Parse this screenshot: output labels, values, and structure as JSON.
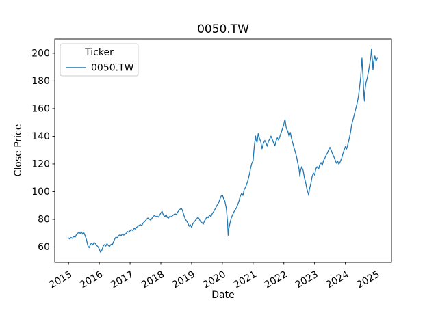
{
  "figure": {
    "title": "0050.TW",
    "xlabel": "Date",
    "ylabel": "Close Price"
  },
  "chart_data": {
    "type": "line",
    "title": "0050.TW",
    "xlabel": "Date",
    "ylabel": "Close Price",
    "grid": false,
    "xlim": [
      2014.55,
      2025.5
    ],
    "ylim": [
      48.9,
      210.3
    ],
    "xticks": [
      2015,
      2016,
      2017,
      2018,
      2019,
      2020,
      2021,
      2022,
      2023,
      2024,
      2025
    ],
    "yticks": [
      60,
      80,
      100,
      120,
      140,
      160,
      180,
      200
    ],
    "legend": {
      "title": "Ticker",
      "position": "upper left"
    },
    "series": [
      {
        "name": "0050.TW",
        "color": "#1f77b4",
        "points": [
          [
            2015.0,
            66.5
          ],
          [
            2015.04,
            65.8
          ],
          [
            2015.08,
            66.9
          ],
          [
            2015.12,
            66.2
          ],
          [
            2015.17,
            67.8
          ],
          [
            2015.21,
            67.0
          ],
          [
            2015.25,
            68.8
          ],
          [
            2015.29,
            69.6
          ],
          [
            2015.33,
            70.8
          ],
          [
            2015.38,
            69.9
          ],
          [
            2015.42,
            70.9
          ],
          [
            2015.46,
            69.3
          ],
          [
            2015.5,
            70.2
          ],
          [
            2015.54,
            68.0
          ],
          [
            2015.58,
            65.5
          ],
          [
            2015.63,
            60.8
          ],
          [
            2015.67,
            59.5
          ],
          [
            2015.71,
            61.9
          ],
          [
            2015.75,
            62.8
          ],
          [
            2015.79,
            61.5
          ],
          [
            2015.83,
            63.4
          ],
          [
            2015.88,
            62.2
          ],
          [
            2015.92,
            61.0
          ],
          [
            2015.96,
            60.1
          ],
          [
            2016.0,
            58.3
          ],
          [
            2016.04,
            56.2
          ],
          [
            2016.08,
            57.5
          ],
          [
            2016.13,
            60.9
          ],
          [
            2016.17,
            61.8
          ],
          [
            2016.21,
            60.7
          ],
          [
            2016.25,
            62.4
          ],
          [
            2016.29,
            61.2
          ],
          [
            2016.33,
            60.4
          ],
          [
            2016.38,
            62.0
          ],
          [
            2016.42,
            61.5
          ],
          [
            2016.46,
            63.8
          ],
          [
            2016.5,
            65.7
          ],
          [
            2016.54,
            67.2
          ],
          [
            2016.58,
            66.5
          ],
          [
            2016.63,
            68.3
          ],
          [
            2016.67,
            68.9
          ],
          [
            2016.71,
            68.2
          ],
          [
            2016.75,
            69.4
          ],
          [
            2016.79,
            68.6
          ],
          [
            2016.83,
            69.0
          ],
          [
            2016.88,
            70.1
          ],
          [
            2016.92,
            71.2
          ],
          [
            2016.96,
            70.6
          ],
          [
            2017.0,
            71.8
          ],
          [
            2017.04,
            72.6
          ],
          [
            2017.08,
            72.0
          ],
          [
            2017.13,
            73.4
          ],
          [
            2017.17,
            73.0
          ],
          [
            2017.21,
            74.2
          ],
          [
            2017.25,
            74.8
          ],
          [
            2017.29,
            75.6
          ],
          [
            2017.33,
            76.2
          ],
          [
            2017.38,
            75.5
          ],
          [
            2017.42,
            77.3
          ],
          [
            2017.46,
            78.1
          ],
          [
            2017.5,
            79.0
          ],
          [
            2017.54,
            80.2
          ],
          [
            2017.58,
            81.0
          ],
          [
            2017.63,
            80.1
          ],
          [
            2017.67,
            79.4
          ],
          [
            2017.71,
            80.8
          ],
          [
            2017.75,
            82.0
          ],
          [
            2017.79,
            82.8
          ],
          [
            2017.83,
            81.9
          ],
          [
            2017.88,
            82.4
          ],
          [
            2017.92,
            81.6
          ],
          [
            2017.96,
            83.0
          ],
          [
            2018.0,
            84.6
          ],
          [
            2018.04,
            85.8
          ],
          [
            2018.08,
            83.2
          ],
          [
            2018.13,
            82.0
          ],
          [
            2018.17,
            83.5
          ],
          [
            2018.21,
            81.4
          ],
          [
            2018.25,
            80.9
          ],
          [
            2018.29,
            82.2
          ],
          [
            2018.33,
            81.8
          ],
          [
            2018.38,
            82.6
          ],
          [
            2018.42,
            83.4
          ],
          [
            2018.46,
            84.1
          ],
          [
            2018.5,
            83.3
          ],
          [
            2018.54,
            85.0
          ],
          [
            2018.58,
            86.2
          ],
          [
            2018.63,
            87.4
          ],
          [
            2018.67,
            88.0
          ],
          [
            2018.71,
            85.9
          ],
          [
            2018.75,
            83.0
          ],
          [
            2018.79,
            80.4
          ],
          [
            2018.83,
            79.0
          ],
          [
            2018.88,
            77.2
          ],
          [
            2018.92,
            75.0
          ],
          [
            2018.96,
            76.1
          ],
          [
            2019.0,
            74.2
          ],
          [
            2019.04,
            76.8
          ],
          [
            2019.08,
            78.0
          ],
          [
            2019.13,
            79.4
          ],
          [
            2019.17,
            80.6
          ],
          [
            2019.21,
            81.5
          ],
          [
            2019.25,
            80.2
          ],
          [
            2019.29,
            78.3
          ],
          [
            2019.33,
            77.8
          ],
          [
            2019.38,
            76.5
          ],
          [
            2019.42,
            78.9
          ],
          [
            2019.46,
            80.3
          ],
          [
            2019.5,
            82.0
          ],
          [
            2019.54,
            81.2
          ],
          [
            2019.58,
            83.0
          ],
          [
            2019.63,
            82.1
          ],
          [
            2019.67,
            84.0
          ],
          [
            2019.71,
            85.3
          ],
          [
            2019.75,
            86.8
          ],
          [
            2019.79,
            88.5
          ],
          [
            2019.83,
            90.2
          ],
          [
            2019.88,
            92.0
          ],
          [
            2019.92,
            94.5
          ],
          [
            2019.96,
            96.8
          ],
          [
            2020.0,
            97.5
          ],
          [
            2020.04,
            95.0
          ],
          [
            2020.08,
            93.2
          ],
          [
            2020.13,
            88.0
          ],
          [
            2020.17,
            78.0
          ],
          [
            2020.19,
            68.5
          ],
          [
            2020.21,
            73.0
          ],
          [
            2020.25,
            77.5
          ],
          [
            2020.29,
            80.9
          ],
          [
            2020.33,
            83.2
          ],
          [
            2020.38,
            85.5
          ],
          [
            2020.42,
            87.0
          ],
          [
            2020.46,
            88.3
          ],
          [
            2020.5,
            90.6
          ],
          [
            2020.54,
            93.0
          ],
          [
            2020.58,
            96.4
          ],
          [
            2020.63,
            99.0
          ],
          [
            2020.67,
            97.2
          ],
          [
            2020.71,
            101.5
          ],
          [
            2020.75,
            103.0
          ],
          [
            2020.79,
            105.2
          ],
          [
            2020.83,
            108.0
          ],
          [
            2020.88,
            112.5
          ],
          [
            2020.92,
            117.0
          ],
          [
            2020.96,
            120.5
          ],
          [
            2021.0,
            122.3
          ],
          [
            2021.02,
            128.0
          ],
          [
            2021.04,
            133.0
          ],
          [
            2021.06,
            136.5
          ],
          [
            2021.08,
            140.2
          ],
          [
            2021.1,
            137.0
          ],
          [
            2021.13,
            135.5
          ],
          [
            2021.15,
            139.0
          ],
          [
            2021.17,
            142.0
          ],
          [
            2021.21,
            138.4
          ],
          [
            2021.25,
            136.0
          ],
          [
            2021.29,
            131.0
          ],
          [
            2021.33,
            134.5
          ],
          [
            2021.38,
            137.0
          ],
          [
            2021.42,
            135.2
          ],
          [
            2021.46,
            132.8
          ],
          [
            2021.5,
            136.4
          ],
          [
            2021.54,
            138.0
          ],
          [
            2021.58,
            140.1
          ],
          [
            2021.63,
            137.5
          ],
          [
            2021.67,
            135.0
          ],
          [
            2021.71,
            133.2
          ],
          [
            2021.75,
            136.8
          ],
          [
            2021.79,
            139.0
          ],
          [
            2021.83,
            137.2
          ],
          [
            2021.88,
            140.5
          ],
          [
            2021.92,
            143.0
          ],
          [
            2021.96,
            145.8
          ],
          [
            2022.0,
            148.5
          ],
          [
            2022.02,
            150.9
          ],
          [
            2022.04,
            152.0
          ],
          [
            2022.08,
            146.0
          ],
          [
            2022.13,
            143.5
          ],
          [
            2022.17,
            140.0
          ],
          [
            2022.21,
            142.8
          ],
          [
            2022.25,
            138.5
          ],
          [
            2022.29,
            135.0
          ],
          [
            2022.33,
            131.8
          ],
          [
            2022.38,
            128.0
          ],
          [
            2022.42,
            124.5
          ],
          [
            2022.46,
            120.0
          ],
          [
            2022.5,
            115.5
          ],
          [
            2022.52,
            111.0
          ],
          [
            2022.54,
            114.8
          ],
          [
            2022.58,
            118.0
          ],
          [
            2022.63,
            115.2
          ],
          [
            2022.67,
            110.0
          ],
          [
            2022.71,
            106.5
          ],
          [
            2022.75,
            102.0
          ],
          [
            2022.79,
            99.0
          ],
          [
            2022.81,
            97.2
          ],
          [
            2022.83,
            101.5
          ],
          [
            2022.88,
            106.0
          ],
          [
            2022.92,
            111.0
          ],
          [
            2022.96,
            113.5
          ],
          [
            2023.0,
            112.0
          ],
          [
            2023.04,
            116.5
          ],
          [
            2023.08,
            118.0
          ],
          [
            2023.13,
            116.2
          ],
          [
            2023.17,
            119.5
          ],
          [
            2023.21,
            121.0
          ],
          [
            2023.25,
            119.0
          ],
          [
            2023.29,
            122.4
          ],
          [
            2023.33,
            124.0
          ],
          [
            2023.38,
            126.5
          ],
          [
            2023.42,
            128.0
          ],
          [
            2023.46,
            130.2
          ],
          [
            2023.5,
            132.0
          ],
          [
            2023.54,
            130.0
          ],
          [
            2023.58,
            127.5
          ],
          [
            2023.63,
            125.0
          ],
          [
            2023.67,
            122.8
          ],
          [
            2023.71,
            120.5
          ],
          [
            2023.75,
            122.0
          ],
          [
            2023.79,
            119.8
          ],
          [
            2023.83,
            121.5
          ],
          [
            2023.88,
            124.0
          ],
          [
            2023.92,
            127.3
          ],
          [
            2023.96,
            130.0
          ],
          [
            2024.0,
            132.5
          ],
          [
            2024.04,
            130.8
          ],
          [
            2024.08,
            134.0
          ],
          [
            2024.13,
            138.5
          ],
          [
            2024.17,
            143.0
          ],
          [
            2024.21,
            148.6
          ],
          [
            2024.25,
            152.0
          ],
          [
            2024.29,
            155.5
          ],
          [
            2024.33,
            159.0
          ],
          [
            2024.38,
            163.5
          ],
          [
            2024.42,
            168.0
          ],
          [
            2024.46,
            175.0
          ],
          [
            2024.5,
            183.0
          ],
          [
            2024.52,
            190.0
          ],
          [
            2024.54,
            196.5
          ],
          [
            2024.56,
            188.0
          ],
          [
            2024.58,
            180.5
          ],
          [
            2024.6,
            170.0
          ],
          [
            2024.62,
            165.5
          ],
          [
            2024.63,
            172.0
          ],
          [
            2024.67,
            178.5
          ],
          [
            2024.71,
            182.0
          ],
          [
            2024.75,
            186.5
          ],
          [
            2024.79,
            192.0
          ],
          [
            2024.83,
            197.5
          ],
          [
            2024.85,
            203.0
          ],
          [
            2024.88,
            195.0
          ],
          [
            2024.9,
            188.0
          ],
          [
            2024.92,
            193.5
          ],
          [
            2024.96,
            198.0
          ],
          [
            2025.0,
            194.0
          ],
          [
            2025.04,
            196.5
          ]
        ]
      }
    ]
  }
}
